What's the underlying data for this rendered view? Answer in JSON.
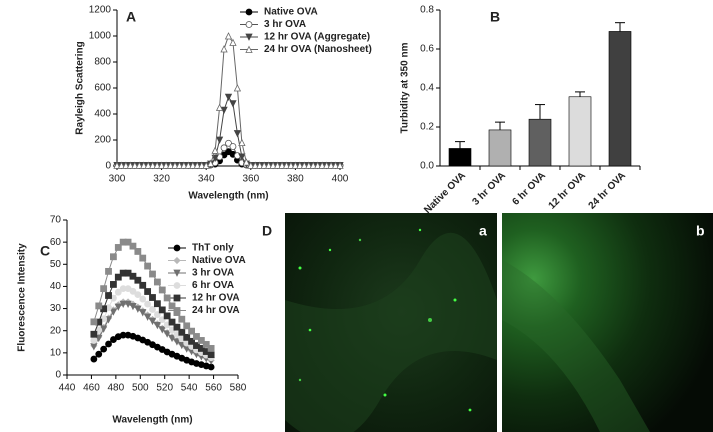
{
  "chart_data": [
    {
      "type": "line",
      "panel_label": "A",
      "xlabel": "Wavelength (nm)",
      "ylabel": "Rayleigh Scattering",
      "xlim": [
        300,
        400
      ],
      "xticks": [
        300,
        320,
        340,
        360,
        380,
        400
      ],
      "ylim": [
        0,
        1200
      ],
      "yticks": [
        0,
        200,
        400,
        600,
        800,
        1000,
        1200
      ],
      "x": [
        300,
        302,
        304,
        306,
        308,
        310,
        312,
        314,
        316,
        318,
        320,
        322,
        324,
        326,
        328,
        330,
        332,
        334,
        336,
        338,
        340,
        342,
        344,
        346,
        348,
        350,
        352,
        354,
        356,
        358,
        360,
        362,
        364,
        366,
        368,
        370,
        372,
        374,
        376,
        378,
        380,
        382,
        384,
        386,
        388,
        390,
        392,
        394,
        396,
        398,
        400
      ],
      "series": [
        {
          "name": "Native OVA",
          "color": "#000000",
          "marker": "circle",
          "values": [
            5,
            5,
            5,
            5,
            5,
            5,
            5,
            5,
            5,
            5,
            5,
            5,
            5,
            5,
            5,
            5,
            5,
            5,
            5,
            5,
            5,
            8,
            15,
            40,
            85,
            110,
            90,
            45,
            15,
            8,
            5,
            5,
            5,
            5,
            5,
            5,
            5,
            5,
            5,
            5,
            5,
            5,
            5,
            5,
            5,
            5,
            5,
            5,
            5,
            5,
            5
          ]
        },
        {
          "name": "3 hr OVA",
          "color": "#555555",
          "marker": "circle-open",
          "values": [
            5,
            5,
            5,
            5,
            5,
            5,
            5,
            5,
            5,
            5,
            5,
            5,
            5,
            5,
            5,
            5,
            5,
            5,
            5,
            5,
            5,
            10,
            25,
            70,
            140,
            175,
            150,
            80,
            25,
            10,
            5,
            5,
            5,
            5,
            5,
            5,
            5,
            5,
            5,
            5,
            5,
            5,
            5,
            5,
            5,
            5,
            5,
            5,
            5,
            5,
            5
          ]
        },
        {
          "name": "12 hr OVA (Aggregate)",
          "color": "#444444",
          "marker": "triangle-down",
          "values": [
            5,
            5,
            5,
            5,
            5,
            5,
            5,
            5,
            5,
            5,
            5,
            5,
            5,
            5,
            5,
            5,
            5,
            5,
            5,
            5,
            5,
            15,
            60,
            200,
            430,
            530,
            480,
            250,
            70,
            15,
            5,
            5,
            5,
            5,
            5,
            5,
            5,
            5,
            5,
            5,
            5,
            5,
            5,
            5,
            5,
            5,
            5,
            5,
            5,
            5,
            5
          ]
        },
        {
          "name": "24 hr OVA (Nanosheet)",
          "color": "#666666",
          "marker": "triangle-open",
          "values": [
            5,
            5,
            5,
            5,
            5,
            5,
            5,
            5,
            5,
            5,
            5,
            5,
            5,
            5,
            5,
            5,
            5,
            5,
            5,
            5,
            5,
            20,
            120,
            450,
            900,
            1000,
            950,
            600,
            180,
            30,
            5,
            5,
            5,
            5,
            5,
            5,
            5,
            5,
            5,
            5,
            5,
            5,
            5,
            5,
            5,
            5,
            5,
            5,
            5,
            5,
            5
          ]
        }
      ]
    },
    {
      "type": "bar",
      "panel_label": "B",
      "ylabel": "Turbidity at 350 nm",
      "categories": [
        "Native OVA",
        "3 hr OVA",
        "6 hr OVA",
        "12 hr OVA",
        "24 hr OVA"
      ],
      "values": [
        0.09,
        0.185,
        0.24,
        0.355,
        0.69
      ],
      "errors": [
        0.035,
        0.04,
        0.075,
        0.025,
        0.045
      ],
      "colors": [
        "#000000",
        "#b0b0b0",
        "#606060",
        "#dcdcdc",
        "#404040"
      ],
      "ylim": [
        0,
        0.8
      ],
      "yticks": [
        {
          "value": 0,
          "label": "0.0"
        },
        0.2,
        0.4,
        0.6,
        0.8
      ]
    },
    {
      "type": "line",
      "panel_label": "C",
      "xlabel": "Wavelength (nm)",
      "ylabel": "Fluorescence Intensity",
      "xlim": [
        440,
        580
      ],
      "xticks": [
        440,
        460,
        480,
        500,
        520,
        540,
        560,
        580
      ],
      "ylim": [
        0,
        70
      ],
      "yticks": [
        0,
        10,
        20,
        30,
        40,
        50,
        60,
        70
      ],
      "x": [
        462,
        466,
        470,
        474,
        478,
        482,
        486,
        490,
        494,
        498,
        502,
        506,
        510,
        514,
        518,
        522,
        526,
        530,
        534,
        538,
        542,
        546,
        550,
        554,
        558
      ],
      "series": [
        {
          "name": "ThT only",
          "color": "#000000",
          "marker": "circle",
          "values": [
            7.2,
            9.4,
            11.7,
            14.0,
            16.0,
            17.3,
            18.0,
            18.0,
            17.5,
            16.7,
            15.8,
            14.8,
            13.7,
            12.6,
            11.5,
            10.4,
            9.4,
            8.5,
            7.6,
            6.7,
            5.9,
            5.2,
            4.7,
            4.1,
            3.6
          ]
        },
        {
          "name": "Native OVA",
          "color": "#b8b8b8",
          "marker": "diamond",
          "values": [
            13.2,
            17.2,
            21.5,
            25.7,
            29.4,
            31.7,
            33.0,
            33.0,
            32.0,
            30.7,
            29.0,
            27.1,
            25.1,
            23.1,
            21.1,
            19.1,
            17.2,
            15.5,
            13.9,
            12.2,
            10.9,
            9.6,
            8.6,
            7.6,
            6.6
          ]
        },
        {
          "name": "3 hr OVA",
          "color": "#707070",
          "marker": "triangle-down",
          "values": [
            12.8,
            16.6,
            20.8,
            25.0,
            28.5,
            30.7,
            32.0,
            32.0,
            31.0,
            29.8,
            28.2,
            26.2,
            24.3,
            22.4,
            20.5,
            18.6,
            16.6,
            15.0,
            13.4,
            11.8,
            10.6,
            9.3,
            8.3,
            7.4,
            6.4
          ]
        },
        {
          "name": "6 hr OVA",
          "color": "#dddddd",
          "marker": "circle",
          "values": [
            15.6,
            20.3,
            25.4,
            30.4,
            34.7,
            37.4,
            39.0,
            39.0,
            37.8,
            36.3,
            34.3,
            32.0,
            29.6,
            27.3,
            25.0,
            22.6,
            20.3,
            18.3,
            16.4,
            14.4,
            12.9,
            11.3,
            10.1,
            9.0,
            7.8
          ]
        },
        {
          "name": "12 hr OVA",
          "color": "#333333",
          "marker": "square",
          "values": [
            18.4,
            23.9,
            29.9,
            35.9,
            40.9,
            44.2,
            46.0,
            46.0,
            44.6,
            42.8,
            40.5,
            37.7,
            35.0,
            32.2,
            29.4,
            26.7,
            23.9,
            21.6,
            19.3,
            17.0,
            15.2,
            13.3,
            12.0,
            10.6,
            9.2
          ]
        },
        {
          "name": "24 hr OVA",
          "color": "#8a8a8a",
          "marker": "square",
          "values": [
            24.0,
            31.2,
            39.0,
            46.8,
            53.4,
            57.6,
            60.0,
            60.0,
            58.2,
            55.8,
            52.8,
            49.2,
            45.6,
            42.0,
            38.4,
            34.8,
            31.2,
            28.2,
            25.2,
            22.2,
            19.8,
            17.4,
            15.6,
            13.8,
            12.0
          ]
        }
      ]
    }
  ],
  "panel_d": {
    "label": "D",
    "image_labels": [
      "a",
      "b"
    ]
  }
}
